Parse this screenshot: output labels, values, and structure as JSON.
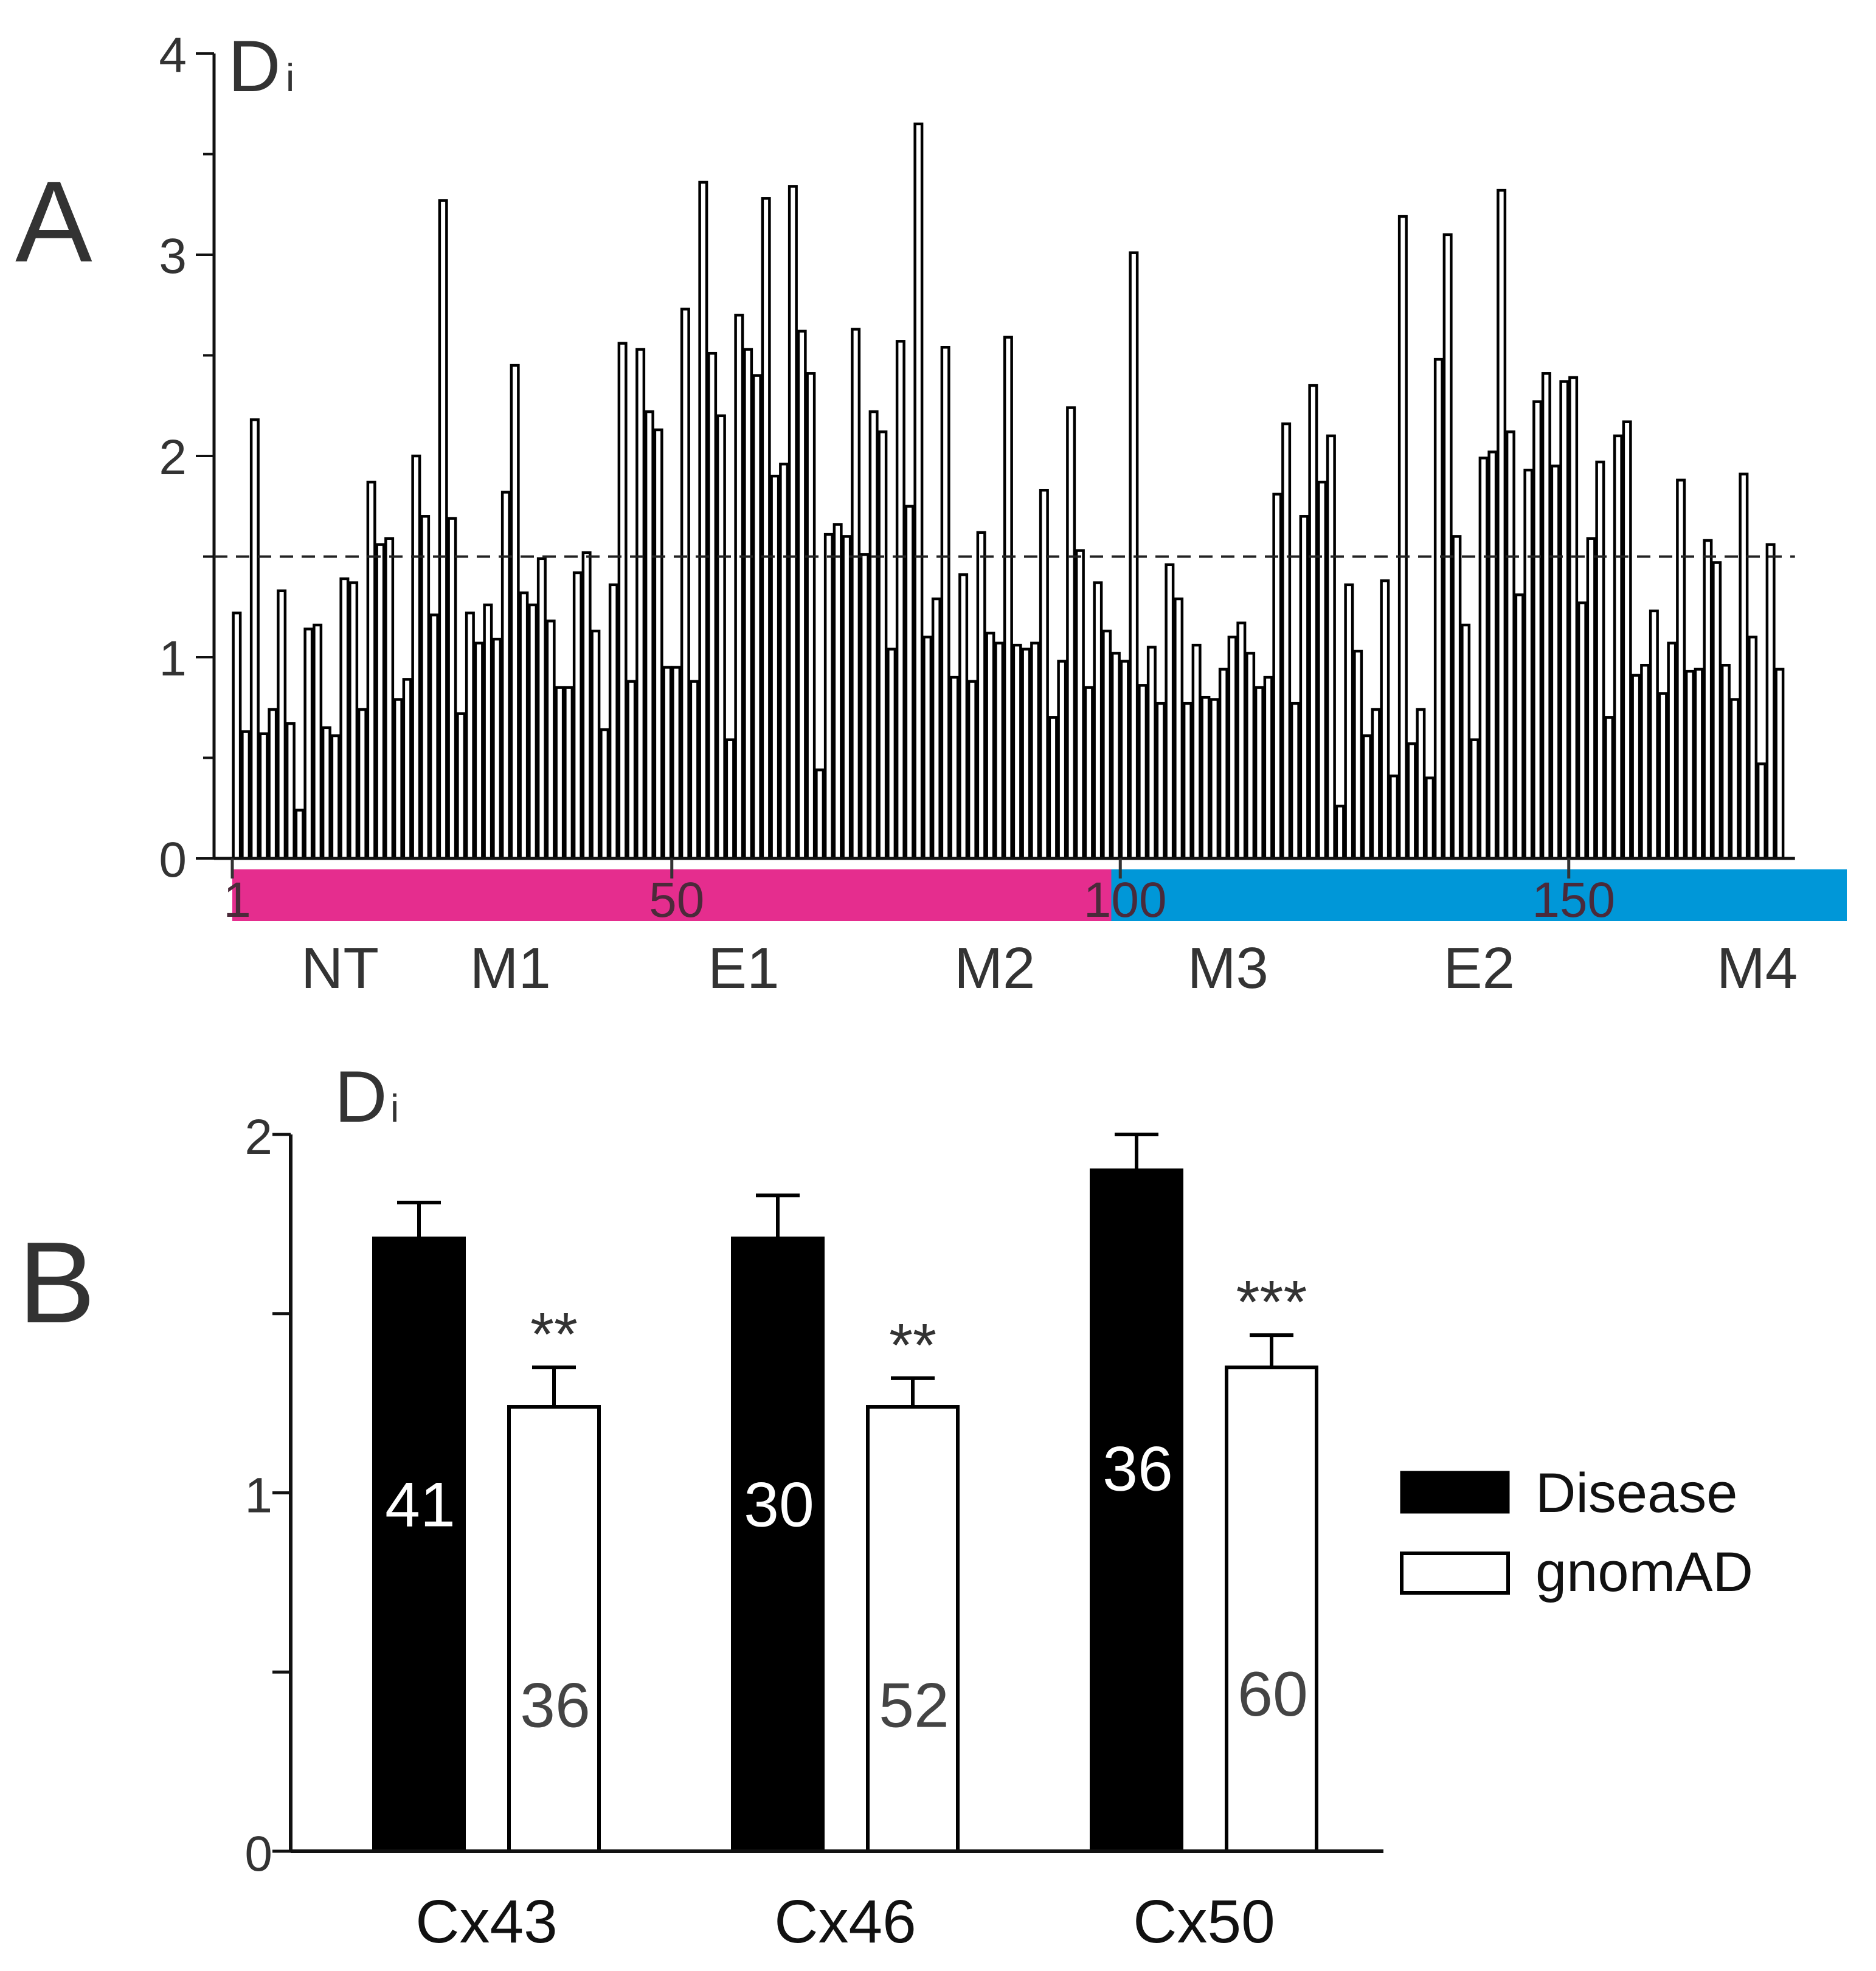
{
  "panel_a": {
    "label": "A",
    "y_title_main": "D",
    "y_title_sub": "i",
    "chart_data": {
      "type": "bar",
      "title": "",
      "xlabel": "",
      "ylabel": "Di",
      "ylim": [
        0,
        4
      ],
      "yticks": [
        0,
        1,
        2,
        3,
        4
      ],
      "threshold": 1.5,
      "x_start": 1,
      "values": [
        1.22,
        0.63,
        2.18,
        0.62,
        0.74,
        1.33,
        0.67,
        0.24,
        1.14,
        1.16,
        0.65,
        0.61,
        1.39,
        1.37,
        0.74,
        1.87,
        1.56,
        1.59,
        0.79,
        0.89,
        2.0,
        1.7,
        1.21,
        3.27,
        1.69,
        0.72,
        1.22,
        1.07,
        1.26,
        1.09,
        1.82,
        2.45,
        1.32,
        1.26,
        1.49,
        1.18,
        0.85,
        0.85,
        1.42,
        1.52,
        1.13,
        0.64,
        1.36,
        2.56,
        0.88,
        2.53,
        2.22,
        2.13,
        0.95,
        0.95,
        2.73,
        0.88,
        3.36,
        2.51,
        2.2,
        0.59,
        2.7,
        2.53,
        2.4,
        3.28,
        1.9,
        1.96,
        3.34,
        2.62,
        2.41,
        0.44,
        1.61,
        1.66,
        1.6,
        2.63,
        1.51,
        2.22,
        2.12,
        1.04,
        2.57,
        1.75,
        3.65,
        1.1,
        1.29,
        2.54,
        0.9,
        1.41,
        0.88,
        1.62,
        1.12,
        1.07,
        2.59,
        1.06,
        1.04,
        1.07,
        1.83,
        0.7,
        0.98,
        2.24,
        1.53,
        0.85,
        1.37,
        1.13,
        1.02,
        0.98,
        3.01,
        0.86,
        1.05,
        0.77,
        1.46,
        1.29,
        0.77,
        1.06,
        0.8,
        0.79,
        0.94,
        1.1,
        1.17,
        1.02,
        0.85,
        0.9,
        1.81,
        2.16,
        0.77,
        1.7,
        2.35,
        1.87,
        2.1,
        0.26,
        1.36,
        1.03,
        0.61,
        0.74,
        1.38,
        0.41,
        3.19,
        0.57,
        0.74,
        0.4,
        2.48,
        3.1,
        1.6,
        1.16,
        0.59,
        1.99,
        2.02,
        3.32,
        2.12,
        1.31,
        1.93,
        2.27,
        2.41,
        1.95,
        2.37,
        2.39,
        1.27,
        1.59,
        1.97,
        0.7,
        2.1,
        2.17,
        0.91,
        0.96,
        1.23,
        0.82,
        1.07,
        1.88,
        0.93,
        0.94,
        1.58,
        1.47,
        0.96,
        0.79,
        1.91,
        1.1,
        0.47,
        1.56,
        0.94
      ],
      "segments": [
        {
          "from": 1,
          "to": 99,
          "color": "#e52d8e"
        },
        {
          "from": 99,
          "to": 181,
          "color": "#0097d8"
        }
      ],
      "seq_ticks": [
        1,
        50,
        100,
        150
      ],
      "seq_tick_labels": [
        "1",
        "50",
        "100",
        "150"
      ],
      "domains": [
        {
          "name": "NT",
          "pos": 13
        },
        {
          "name": "M1",
          "pos": 32
        },
        {
          "name": "E1",
          "pos": 58
        },
        {
          "name": "M2",
          "pos": 86
        },
        {
          "name": "M3",
          "pos": 112
        },
        {
          "name": "E2",
          "pos": 140
        },
        {
          "name": "M4",
          "pos": 171
        }
      ]
    }
  },
  "panel_b": {
    "label": "B",
    "y_title_main": "D",
    "y_title_sub": "i",
    "chart_data": {
      "type": "bar",
      "title": "",
      "xlabel": "",
      "ylabel": "Di",
      "ylim": [
        0,
        2
      ],
      "yticks": [
        0,
        1,
        2
      ],
      "categories": [
        "Cx43",
        "Cx46",
        "Cx50"
      ],
      "series": [
        {
          "name": "Disease",
          "fill": "#000000",
          "values": [
            1.71,
            1.71,
            1.9
          ],
          "errors": [
            0.1,
            0.12,
            0.1
          ],
          "n": [
            "41",
            "30",
            "36"
          ]
        },
        {
          "name": "gnomAD",
          "fill": "#ffffff",
          "values": [
            1.24,
            1.24,
            1.35
          ],
          "errors": [
            0.11,
            0.08,
            0.09
          ],
          "n": [
            "36",
            "52",
            "60"
          ]
        }
      ],
      "significance": [
        "**",
        "**",
        "***"
      ],
      "legend_position": "right"
    }
  },
  "legend": {
    "disease_label": "Disease",
    "gnomad_label": "gnomAD"
  }
}
